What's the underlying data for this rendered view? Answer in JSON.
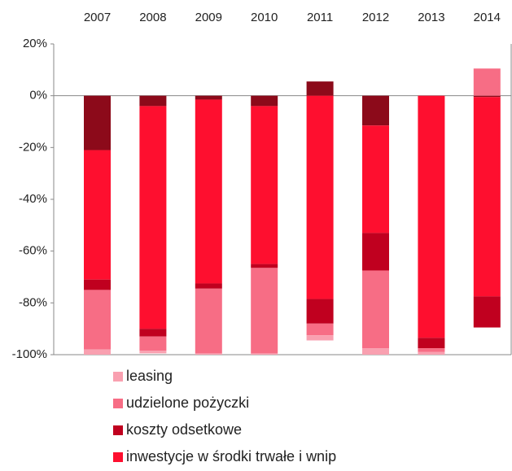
{
  "chart_data": {
    "type": "stacked_bar",
    "categories": [
      "2007",
      "2008",
      "2009",
      "2010",
      "2011",
      "2012",
      "2013",
      "2014"
    ],
    "series": [
      {
        "color": "#8c0a1a",
        "values": [
          -21,
          -4,
          -1.5,
          -4,
          5.5,
          -11.5,
          0,
          -0.5
        ]
      },
      {
        "name": "inwestycje w środki trwałe i wnip",
        "color": "#fe0f2f",
        "values": [
          -50,
          -86,
          -71,
          -61,
          -78.5,
          -41.5,
          -93.5,
          -77
        ]
      },
      {
        "name": "koszty odsetkowe",
        "color": "#c0001f",
        "values": [
          -4,
          -3,
          -2,
          -1.5,
          -9.5,
          -14.5,
          -4,
          -12
        ]
      },
      {
        "name": "udzielone pożyczki",
        "color": "#f76d85",
        "values": [
          -23,
          -5.5,
          -25,
          -33,
          -4.5,
          -30,
          -1.5,
          10.5
        ]
      },
      {
        "name": "leasing",
        "color": "#f9a0b0",
        "values": [
          -2,
          -1,
          -0.5,
          -0.5,
          -2,
          -2.5,
          -1,
          0
        ]
      }
    ],
    "ylim": [
      -100,
      20
    ],
    "yticks": [
      {
        "value": 20,
        "label": "20%"
      },
      {
        "value": 0,
        "label": "0%"
      },
      {
        "value": -20,
        "label": "-20%"
      },
      {
        "value": -40,
        "label": "-40%"
      },
      {
        "value": -60,
        "label": "-60%"
      },
      {
        "value": -80,
        "label": "-80%"
      },
      {
        "value": -100,
        "label": "-100%"
      }
    ]
  }
}
